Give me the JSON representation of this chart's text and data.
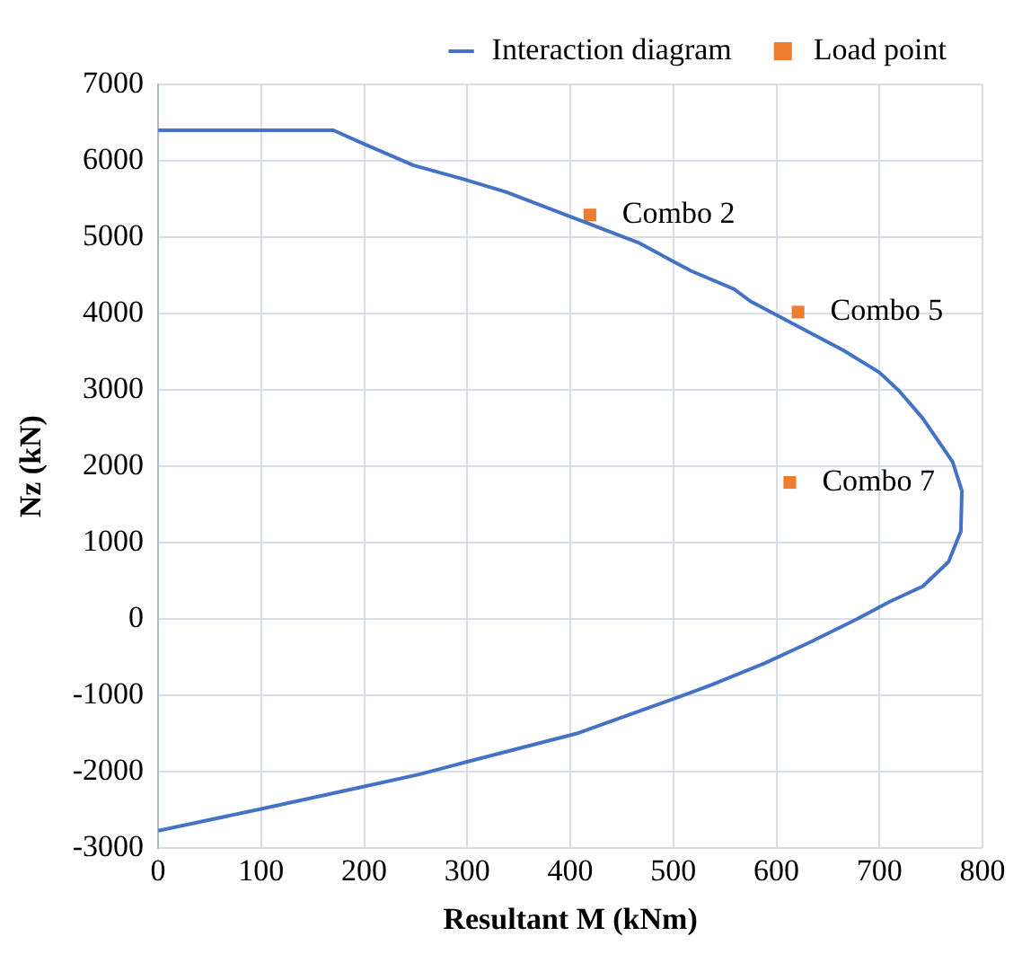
{
  "chart_data": {
    "type": "line",
    "xlabel": "Resultant M (kNm)",
    "ylabel": "Nz (kN)",
    "xlim": [
      0,
      800
    ],
    "xticks": [
      0,
      100,
      200,
      300,
      400,
      500,
      600,
      700,
      800
    ],
    "ylim": [
      -3000,
      7000
    ],
    "yticks": [
      -3000,
      -2000,
      -1000,
      0,
      1000,
      2000,
      3000,
      4000,
      5000,
      6000,
      7000
    ],
    "grid": true,
    "legend": "top right",
    "series": [
      {
        "name": "Interaction diagram",
        "type": "line",
        "color": "#4472c4",
        "marker": "none",
        "x": [
          0,
          170,
          200,
          248,
          299,
          338,
          396,
          466,
          517,
          559,
          575,
          620,
          665,
          700,
          719,
          742,
          771,
          780,
          779,
          767,
          742,
          710,
          678,
          633,
          588,
          537,
          501,
          408,
          299,
          254,
          200,
          101,
          0
        ],
        "values": [
          6400,
          6400,
          6220,
          5940,
          5750,
          5590,
          5290,
          4930,
          4560,
          4320,
          4160,
          3840,
          3520,
          3230,
          2990,
          2630,
          2060,
          1680,
          1150,
          750,
          430,
          230,
          0,
          -300,
          -580,
          -860,
          -1040,
          -1490,
          -1870,
          -2030,
          -2190,
          -2480,
          -2770
        ]
      },
      {
        "name": "Load point",
        "type": "scatter",
        "color": "#ed7d31",
        "marker": "square",
        "x": [
          419,
          621,
          613
        ],
        "values": [
          5290,
          4020,
          1790
        ]
      }
    ],
    "annotations": [
      {
        "text": "Combo 2",
        "x": 419,
        "y": 5290
      },
      {
        "text": "Combo 5",
        "x": 621,
        "y": 4020
      },
      {
        "text": "Combo 7",
        "x": 613,
        "y": 1790
      }
    ]
  }
}
